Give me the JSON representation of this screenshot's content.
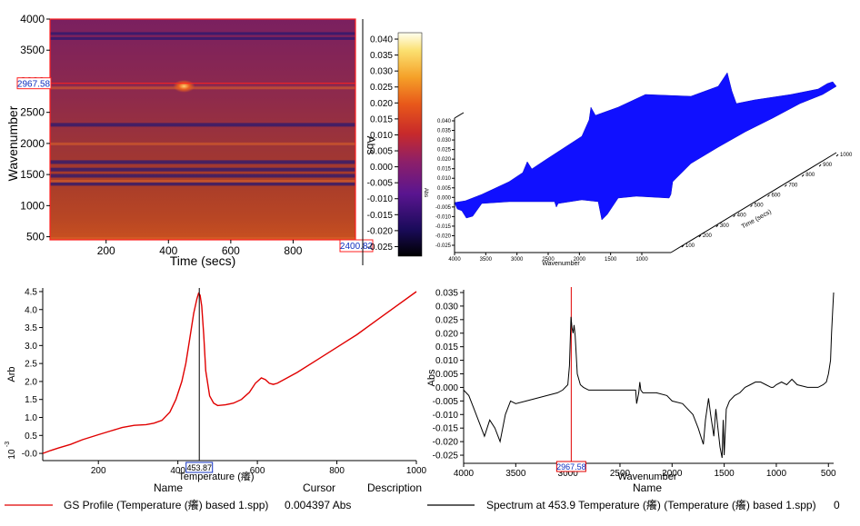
{
  "chart_data": [
    {
      "type": "heatmap",
      "xlabel": "Time (secs)",
      "ylabel": "Wavenumber",
      "xlim": [
        20,
        1000
      ],
      "ylim": [
        450,
        4000
      ],
      "xticks": [
        "200",
        "400",
        "600",
        "800"
      ],
      "yticks": [
        "500",
        "1000",
        "1500",
        "2000",
        "2500",
        "3000",
        "3500",
        "4000"
      ],
      "cursor_y_label": "2967.58",
      "cursor_x_label": "2400.82",
      "cursor_y_value": 2967.58,
      "colorbar_label": "Abs",
      "colorbar_ticks": [
        "0.040",
        "0.035",
        "0.030",
        "0.025",
        "0.020",
        "0.015",
        "0.010",
        "0.005",
        "0.000",
        "-0.005",
        "-0.010",
        "-0.015",
        "-0.020",
        "-0.025"
      ],
      "colorbar_range": [
        -0.028,
        0.042
      ],
      "hotspot": {
        "time": 450,
        "wavenumber": 2920
      },
      "dark_bands": [
        3760,
        3680,
        2300,
        1700,
        1580,
        1480,
        1350
      ],
      "light_bands": [
        2900,
        2000,
        1400,
        480
      ]
    },
    {
      "type": "area",
      "title": "",
      "xlabel": "Wavenumber",
      "ylabel": "Abs",
      "zlabel": "Time (secs)",
      "xticks": [
        "4000",
        "3500",
        "3000",
        "2500",
        "2000",
        "1500",
        "1000"
      ],
      "yticks": [
        "0.040",
        "0.035",
        "0.030",
        "0.025",
        "0.020",
        "0.015",
        "0.010",
        "0.005",
        "0.000",
        "-0.005",
        "-0.010",
        "-0.015",
        "-0.020",
        "-0.025"
      ],
      "zticks": [
        "100",
        "200",
        "300",
        "400",
        "500",
        "600",
        "700",
        "800",
        "900",
        "1000"
      ],
      "color": "#1010ff"
    },
    {
      "type": "line",
      "xlabel": "Temperature (癢)",
      "ylabel": "Arb",
      "yexp": "10",
      "yexp_power": "-3",
      "xlim": [
        60,
        1000
      ],
      "ylim": [
        -0.2,
        4.6
      ],
      "xticks": [
        "200",
        "400",
        "600",
        "800",
        "1000"
      ],
      "yticks": [
        "-0.0",
        "0.5",
        "1.0",
        "1.5",
        "2.0",
        "2.5",
        "3.0",
        "3.5",
        "4.0",
        "4.5"
      ],
      "cursor_x": 453.87,
      "cursor_label": "453.87",
      "color": "#e00000",
      "series": [
        {
          "name": "GS Profile (Temperature (癢) based 1.spp)",
          "x": [
            60,
            80,
            100,
            130,
            160,
            200,
            230,
            260,
            290,
            320,
            340,
            360,
            380,
            395,
            410,
            420,
            430,
            440,
            448,
            452,
            456,
            460,
            465,
            470,
            480,
            490,
            500,
            520,
            540,
            560,
            580,
            595,
            610,
            620,
            630,
            640,
            650,
            700,
            750,
            800,
            850,
            900,
            950,
            1000
          ],
          "y": [
            0.0,
            0.08,
            0.15,
            0.25,
            0.38,
            0.52,
            0.62,
            0.72,
            0.78,
            0.8,
            0.84,
            0.92,
            1.15,
            1.5,
            2.0,
            2.5,
            3.2,
            3.9,
            4.3,
            4.45,
            4.4,
            4.1,
            3.3,
            2.3,
            1.6,
            1.4,
            1.33,
            1.35,
            1.4,
            1.5,
            1.7,
            1.95,
            2.1,
            2.05,
            1.95,
            1.92,
            1.95,
            2.25,
            2.6,
            2.95,
            3.3,
            3.7,
            4.1,
            4.5
          ]
        }
      ]
    },
    {
      "type": "line",
      "xlabel": "Wavenumber",
      "ylabel": "Abs",
      "xlim": [
        4000,
        450
      ],
      "ylim": [
        -0.028,
        0.036
      ],
      "xticks": [
        "4000",
        "3500",
        "3000",
        "2500",
        "2000",
        "1500",
        "1000",
        "500"
      ],
      "yticks": [
        "0.035",
        "0.030",
        "0.025",
        "0.020",
        "0.015",
        "0.010",
        "0.005",
        "0.000",
        "-0.005",
        "-0.010",
        "-0.015",
        "-0.020",
        "-0.025"
      ],
      "cursor_x": 2967.58,
      "cursor_label": "2967.58",
      "color": "#000000",
      "series": [
        {
          "name": "Spectrum at 453.9 Temperature (癢) (Temperature (癢) based 1.spp)",
          "x": [
            4000,
            3950,
            3900,
            3850,
            3800,
            3750,
            3700,
            3650,
            3600,
            3550,
            3500,
            3400,
            3300,
            3200,
            3100,
            3050,
            3000,
            2985,
            2970,
            2960,
            2950,
            2940,
            2930,
            2910,
            2880,
            2850,
            2800,
            2700,
            2600,
            2500,
            2400,
            2350,
            2340,
            2320,
            2310,
            2300,
            2280,
            2250,
            2150,
            2050,
            2000,
            1900,
            1800,
            1750,
            1700,
            1680,
            1650,
            1630,
            1600,
            1580,
            1560,
            1540,
            1520,
            1510,
            1500,
            1480,
            1450,
            1400,
            1350,
            1300,
            1250,
            1200,
            1150,
            1100,
            1050,
            1030,
            1000,
            950,
            900,
            850,
            800,
            700,
            600,
            550,
            520,
            500,
            480,
            470,
            460,
            450
          ],
          "y": [
            -0.001,
            -0.003,
            -0.008,
            -0.013,
            -0.018,
            -0.012,
            -0.015,
            -0.02,
            -0.01,
            -0.005,
            -0.006,
            -0.005,
            -0.004,
            -0.003,
            -0.002,
            -0.001,
            0.001,
            0.008,
            0.026,
            0.022,
            0.02,
            0.023,
            0.019,
            0.005,
            0.001,
            0.0,
            -0.001,
            -0.001,
            -0.001,
            -0.001,
            -0.001,
            -0.001,
            -0.006,
            -0.002,
            0.002,
            -0.001,
            -0.002,
            -0.002,
            -0.002,
            -0.003,
            -0.005,
            -0.006,
            -0.01,
            -0.015,
            -0.021,
            -0.012,
            -0.004,
            -0.01,
            -0.018,
            -0.008,
            -0.015,
            -0.022,
            -0.026,
            -0.012,
            -0.025,
            -0.008,
            -0.005,
            -0.003,
            -0.002,
            0.0,
            0.001,
            0.002,
            0.002,
            0.001,
            0.0,
            0.0,
            0.001,
            0.002,
            0.001,
            0.003,
            0.001,
            0.0,
            0.0,
            0.001,
            0.002,
            0.005,
            0.01,
            0.02,
            0.028,
            0.035
          ]
        }
      ]
    }
  ],
  "legend": {
    "headers": {
      "name": "Name",
      "cursor": "Cursor",
      "description": "Description"
    },
    "left_name": "GS Profile (Temperature (癢) based 1.spp)",
    "left_cursor": "0.004397 Abs",
    "right_name_header": "Name",
    "right_name": "Spectrum at 453.9 Temperature (癢) (Temperature (癢) based 1.spp)",
    "right_cursor": "0",
    "left_line_color": "#e00000",
    "right_line_color": "#000000"
  }
}
